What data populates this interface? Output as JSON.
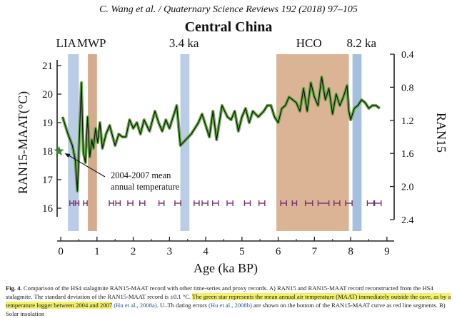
{
  "header": "C. Wang et al. / Quaternary Science Reviews 192 (2018) 97–105",
  "chart_data": {
    "type": "line",
    "title": "Central China",
    "xlabel": "Age (ka BP)",
    "ylabel_left": "RAN15-MAAT(°C)",
    "ylabel_right": "RAN15",
    "xlim": [
      -0.1,
      9.2
    ],
    "xticks": [
      "0",
      "1",
      "2",
      "3",
      "4",
      "5",
      "6",
      "7",
      "8",
      "9"
    ],
    "ylim_left": [
      15.6,
      21.4
    ],
    "yticks_left": [
      "16",
      "17",
      "18",
      "19",
      "20",
      "21"
    ],
    "ylim_right": [
      0.4,
      2.4
    ],
    "yticks_right": [
      "0.4",
      "0.8",
      "1.2",
      "1.6",
      "2.0",
      "2.4"
    ],
    "y_right_inverted": true,
    "grid": false,
    "series": [
      {
        "x": [
          0.05,
          0.2,
          0.32,
          0.4,
          0.46,
          0.52,
          0.57,
          0.62,
          0.68,
          0.74,
          0.8,
          0.86,
          0.9,
          0.96,
          1.02,
          1.08,
          1.15,
          1.25,
          1.35,
          1.5,
          1.6,
          1.7,
          1.8,
          1.9,
          2.0,
          2.1,
          2.2,
          2.3,
          2.45,
          2.6,
          2.7,
          2.8,
          2.9,
          3.0,
          3.1,
          3.2,
          3.3,
          3.45,
          3.6,
          3.7,
          3.8,
          3.9,
          4.0,
          4.1,
          4.2,
          4.3,
          4.45,
          4.6,
          4.7,
          4.8,
          4.9,
          5.0,
          5.1,
          5.2,
          5.3,
          5.45,
          5.6,
          5.7,
          5.8,
          5.9,
          6.0,
          6.1,
          6.2,
          6.3,
          6.4,
          6.5,
          6.6,
          6.7,
          6.8,
          6.9,
          7.0,
          7.1,
          7.2,
          7.3,
          7.4,
          7.5,
          7.6,
          7.7,
          7.8,
          7.9,
          7.95,
          8.0,
          8.1,
          8.2,
          8.3,
          8.4,
          8.5,
          8.6,
          8.7,
          8.8
        ],
        "y": [
          19.2,
          18.6,
          18.2,
          17.7,
          16.6,
          18.7,
          20.4,
          18.0,
          17.6,
          19.2,
          17.8,
          18.4,
          18.1,
          18.8,
          18.3,
          19.0,
          18.1,
          18.6,
          18.9,
          18.2,
          18.6,
          18.5,
          18.5,
          19.1,
          18.8,
          19.0,
          18.6,
          19.1,
          18.7,
          19.4,
          19.0,
          18.7,
          19.1,
          18.8,
          19.2,
          19.6,
          18.2,
          18.4,
          18.6,
          18.8,
          19.0,
          19.3,
          18.9,
          18.5,
          19.4,
          18.4,
          19.6,
          19.2,
          19.1,
          19.4,
          18.7,
          19.2,
          19.5,
          19.0,
          19.4,
          19.2,
          19.4,
          19.6,
          19.6,
          19.2,
          19.0,
          19.5,
          19.6,
          19.9,
          19.8,
          19.7,
          19.4,
          20.2,
          19.4,
          20.4,
          19.9,
          19.6,
          20.6,
          19.8,
          20.2,
          19.3,
          20.0,
          19.6,
          19.9,
          20.3,
          19.4,
          19.1,
          19.5,
          19.6,
          19.8,
          19.7,
          19.5,
          19.6,
          19.6,
          19.5
        ]
      }
    ],
    "shaded_bands": [
      {
        "x0": 0.2,
        "x1": 0.5,
        "color": "#b3c7e3"
      },
      {
        "x0": 0.75,
        "x1": 1.0,
        "color": "#cfa27f"
      },
      {
        "x0": 3.3,
        "x1": 3.55,
        "color": "#b3c7e3"
      },
      {
        "x0": 5.95,
        "x1": 7.95,
        "color": "#d6ac8a"
      },
      {
        "x0": 8.05,
        "x1": 8.3,
        "color": "#9cb8da"
      }
    ],
    "event_labels": [
      {
        "text": "LIA",
        "x": 0.15
      },
      {
        "text": "MWP",
        "x": 0.85
      },
      {
        "text": "3.4 ka",
        "x": 3.4
      },
      {
        "text": "HCO",
        "x": 6.85
      },
      {
        "text": "8.2 ka",
        "x": 8.3
      }
    ],
    "star": {
      "x": -0.05,
      "y": 18.0,
      "color": "#3d8c2c"
    },
    "annotation": {
      "line1": "2004-2007 mean",
      "line2": "annual temperature",
      "x": 2.6,
      "y": 17.0
    },
    "dating_errors": [
      {
        "x": 0.3,
        "e": 0.05
      },
      {
        "x": 0.45,
        "e": 0.05
      },
      {
        "x": 0.68,
        "e": 0.05
      },
      {
        "x": 1.4,
        "e": 0.06
      },
      {
        "x": 1.58,
        "e": 0.06
      },
      {
        "x": 1.92,
        "e": 0.07
      },
      {
        "x": 2.25,
        "e": 0.07
      },
      {
        "x": 2.78,
        "e": 0.07
      },
      {
        "x": 3.23,
        "e": 0.08
      },
      {
        "x": 3.75,
        "e": 0.07
      },
      {
        "x": 3.98,
        "e": 0.08
      },
      {
        "x": 4.27,
        "e": 0.08
      },
      {
        "x": 4.67,
        "e": 0.08
      },
      {
        "x": 5.15,
        "e": 0.08
      },
      {
        "x": 5.55,
        "e": 0.08
      },
      {
        "x": 6.15,
        "e": 0.08
      },
      {
        "x": 6.45,
        "e": 0.06
      },
      {
        "x": 6.85,
        "e": 0.1
      },
      {
        "x": 7.25,
        "e": 0.15
      },
      {
        "x": 7.62,
        "e": 0.08
      },
      {
        "x": 7.95,
        "e": 0.09
      },
      {
        "x": 8.55,
        "e": 0.09
      },
      {
        "x": 8.75,
        "e": 0.09
      }
    ]
  },
  "caption": {
    "fig_label": "Fig. 4.",
    "part1": " Comparison of the HS4 stalagmite RAN15-MAAT record with other time-series and proxy records. A) RAN15 and RAN15-MAAT record reconstructed from the HS4 stalagmite. The standard deviation of the RAN15-MAAT record is ±0.1 °C. ",
    "highlight": "The green star represents the mean annual air temperature (MAAT) immediately outside the cave, as by a temperature logger between 2004 and 2007",
    "ref1": "(Hu et al., 2008a)",
    "part2": ". U–Th dating errors ",
    "ref2": "(Hu et al., 2008b)",
    "part3": " are shown on the bottom of the RAN15-MAAT curve as red line segments. B) Solar insolation"
  }
}
